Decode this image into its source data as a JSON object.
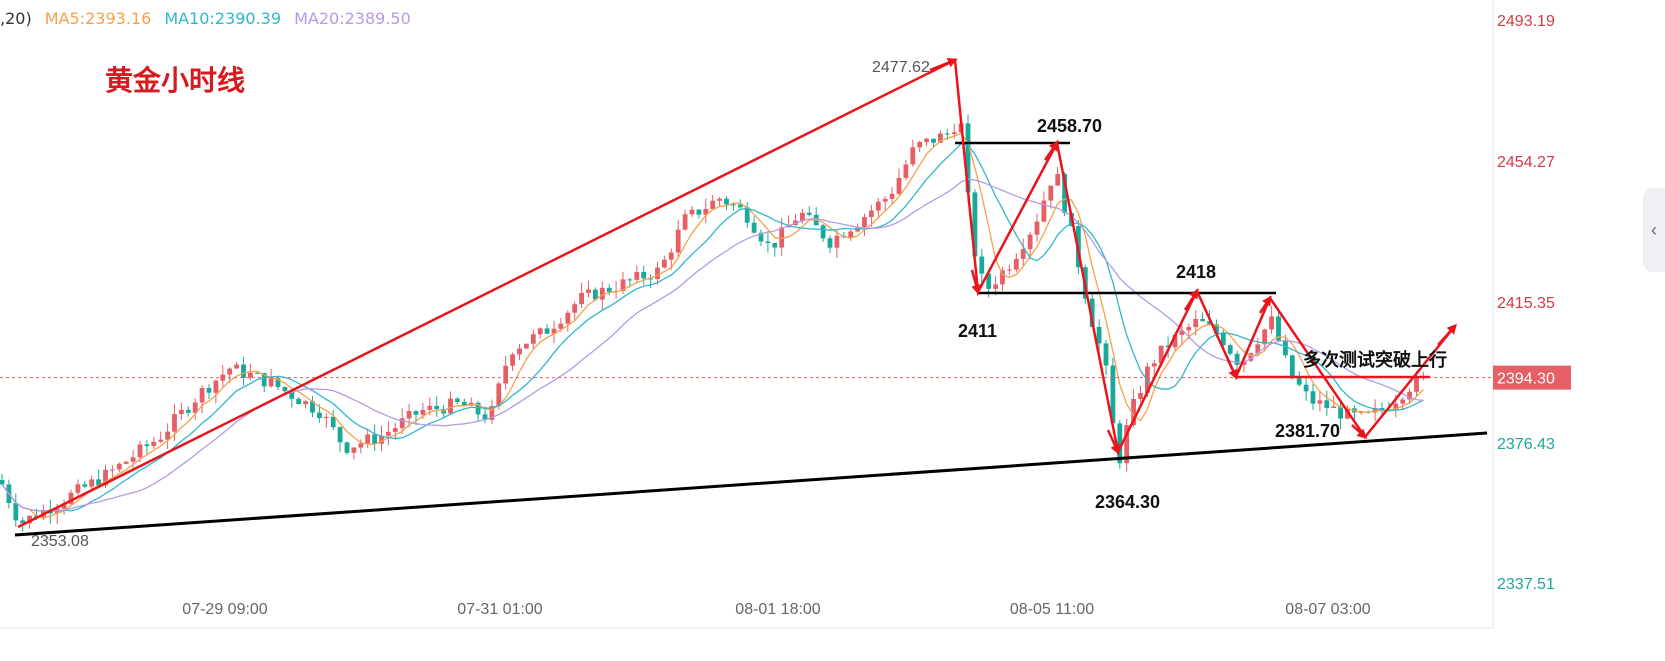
{
  "legend": {
    "prefix": ",20)",
    "ma5": "MA5:2393.16",
    "ma10": "MA10:2390.39",
    "ma20": "MA20:2389.50"
  },
  "colors": {
    "up": "#e65f66",
    "down": "#1aa89b",
    "ma5": "#f5a24a",
    "ma10": "#30b8c9",
    "ma20": "#b69ae6",
    "trend_red": "#e8161c",
    "trend_black": "#000000",
    "axis_red": "#d23b45",
    "axis_green": "#1aa89b"
  },
  "collapse_icon": "chevron-left-icon",
  "chart_data": {
    "type": "candlestick",
    "title": "黄金小时线",
    "ylim": [
      2335,
      2495
    ],
    "y_ticks": [
      {
        "value": 2493.19,
        "label": "2493.19",
        "color": "red"
      },
      {
        "value": 2454.27,
        "label": "2454.27",
        "color": "red"
      },
      {
        "value": 2415.35,
        "label": "2415.35",
        "color": "red"
      },
      {
        "value": 2376.43,
        "label": "2376.43",
        "color": "green"
      },
      {
        "value": 2337.51,
        "label": "2337.51",
        "color": "green"
      }
    ],
    "x_ticks": [
      "07-29 09:00",
      "07-31 01:00",
      "08-01 18:00",
      "08-05 11:00",
      "08-07 03:00"
    ],
    "current_price": {
      "value": 2394.3,
      "label": "2394.30"
    },
    "high_label": "2477.62",
    "low_label": "2353.08",
    "annotations": [
      {
        "text": "2458.70",
        "value": 2458.7
      },
      {
        "text": "2411",
        "value": 2411
      },
      {
        "text": "2418",
        "value": 2418
      },
      {
        "text": "2364.30",
        "value": 2364.3
      },
      {
        "text": "2381.70",
        "value": 2381.7
      },
      {
        "text": "多次测试突破上行",
        "value": 2396
      }
    ],
    "ma": {
      "ma5": 2393.16,
      "ma10": 2390.39,
      "ma20": 2389.5
    }
  }
}
